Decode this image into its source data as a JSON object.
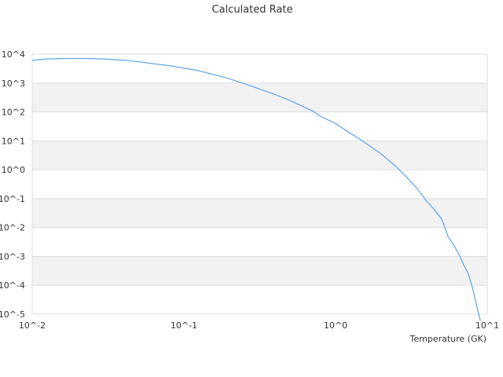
{
  "chart_data": {
    "type": "line",
    "title": "Calculated Rate",
    "xlabel": "Temperature (GK)",
    "ylabel": "",
    "xscale": "log",
    "yscale": "log",
    "xlim": [
      0.01,
      10
    ],
    "ylim": [
      1e-05,
      10000
    ],
    "x_tick_labels": [
      "10^-2",
      "10^-1",
      "10^0",
      "10^1"
    ],
    "y_tick_labels": [
      "10^4",
      "10^3",
      "10^2",
      "10^1",
      "10^0",
      "10^-1",
      "10^-2",
      "10^-3",
      "10^-4",
      "10^-5"
    ],
    "grid": "alternating horizontal bands",
    "legend": "none",
    "series_color": "#4e9bec",
    "band_color": "#f2f2f2",
    "series": [
      {
        "x": [
          0.01,
          0.011,
          0.0125,
          0.015,
          0.02,
          0.025,
          0.03,
          0.04,
          0.05,
          0.06,
          0.08,
          0.1,
          0.12,
          0.15,
          0.2,
          0.25,
          0.3,
          0.4,
          0.5,
          0.6,
          0.7,
          0.8,
          1.0,
          1.2,
          1.5,
          2.0,
          2.5,
          3.0,
          3.5,
          4.0,
          4.5,
          5.0,
          5.5,
          6.0,
          6.5,
          7.0,
          7.5,
          8.0,
          8.5,
          9.0
        ],
        "y": [
          6000,
          6500,
          6800,
          7000,
          7100,
          7000,
          6800,
          6200,
          5500,
          4800,
          4000,
          3300,
          2800,
          2100,
          1400,
          950,
          680,
          400,
          250,
          160,
          110,
          70,
          40,
          21,
          10,
          3.5,
          1.3,
          0.5,
          0.2,
          0.08,
          0.04,
          0.02,
          0.005,
          0.0025,
          0.0012,
          0.0005,
          0.00025,
          8e-05,
          2e-05,
          6e-06
        ]
      }
    ]
  }
}
